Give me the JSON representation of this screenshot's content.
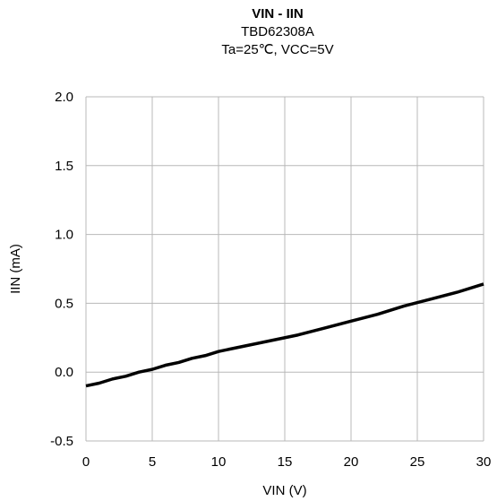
{
  "chart_data": {
    "type": "line",
    "title": "VIN  - IIN",
    "subtitle": "TBD62308A",
    "conditions": "Ta=25℃, VCC=5V",
    "xlabel": "VIN (V)",
    "ylabel": "IIN (mA)",
    "xlim": [
      0,
      30
    ],
    "ylim": [
      -0.5,
      2.0
    ],
    "x_ticks": [
      "0",
      "5",
      "10",
      "15",
      "20",
      "25",
      "30"
    ],
    "y_ticks": [
      "2.0",
      "1.5",
      "1.0",
      "0.5",
      "0.0",
      "-0.5"
    ],
    "grid": true,
    "series": [
      {
        "color": "#000000",
        "x": [
          0,
          1,
          2,
          3,
          4,
          5,
          6,
          7,
          8,
          9,
          10,
          12,
          14,
          16,
          18,
          20,
          22,
          24,
          26,
          28,
          30
        ],
        "y": [
          -0.1,
          -0.08,
          -0.05,
          -0.03,
          0.0,
          0.02,
          0.05,
          0.07,
          0.1,
          0.12,
          0.15,
          0.19,
          0.23,
          0.27,
          0.32,
          0.37,
          0.42,
          0.48,
          0.53,
          0.58,
          0.64
        ]
      }
    ]
  }
}
